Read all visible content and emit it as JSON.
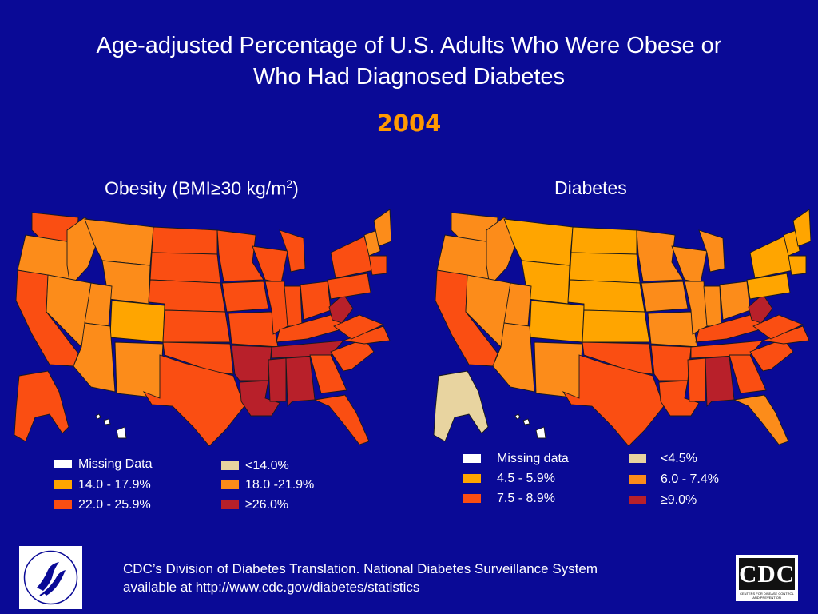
{
  "title_line1": "Age-adjusted Percentage of U.S. Adults Who Were Obese or",
  "title_line2": "Who Had Diagnosed Diabetes",
  "year": "2004",
  "colors": {
    "background": "#0a0a96",
    "missing": "#ffffff",
    "lowest": "#e8d4a0",
    "c1": "#ffa500",
    "c2": "#fc8c1a",
    "c3": "#fa4e12",
    "c4": "#b8202a"
  },
  "obesity": {
    "title_prefix": "Obesity (BMI≥30 kg/m",
    "title_sup": "2",
    "title_suffix": ")",
    "legend": [
      {
        "label": "Missing Data",
        "color": "#ffffff"
      },
      {
        "label": "14.0 - 17.9%",
        "color": "#ffa500"
      },
      {
        "label": "22.0 - 25.9%",
        "color": "#fa4e12"
      },
      {
        "label": "<14.0%",
        "color": "#e8d4a0"
      },
      {
        "label": "18.0 -21.9%",
        "color": "#fc8c1a"
      },
      {
        "label": "≥26.0%",
        "color": "#b8202a"
      }
    ],
    "regions": {
      "west": "#fc8c1a",
      "washington": "#fa4e12",
      "california": "#fa4e12",
      "mountain_n": "#fc8c1a",
      "colorado": "#ffa500",
      "southwest": "#fc8c1a",
      "plains": "#fa4e12",
      "texas_ok": "#fa4e12",
      "deep_south": "#b8202a",
      "midwest": "#fa4e12",
      "southeast": "#fa4e12",
      "northeast": "#fa4e12",
      "new_england": "#fc8c1a",
      "florida": "#fa4e12",
      "west_virginia": "#b8202a",
      "alaska": "#fa4e12",
      "hawaii": "#ffffff"
    }
  },
  "diabetes": {
    "title": "Diabetes",
    "legend": [
      {
        "label": "Missing data",
        "color": "#ffffff"
      },
      {
        "label": "4.5 - 5.9%",
        "color": "#ffa500"
      },
      {
        "label": "7.5 - 8.9%",
        "color": "#fa4e12"
      },
      {
        "label": "<4.5%",
        "color": "#e8d4a0"
      },
      {
        "label": "6.0 - 7.4%",
        "color": "#fc8c1a"
      },
      {
        "label": "≥9.0%",
        "color": "#b8202a"
      }
    ],
    "regions": {
      "west": "#fc8c1a",
      "washington": "#fc8c1a",
      "california": "#fa4e12",
      "mountain_n": "#ffa500",
      "colorado": "#ffa500",
      "southwest": "#fc8c1a",
      "plains": "#ffa500",
      "texas_ok": "#fa4e12",
      "deep_south": "#fa4e12",
      "midwest": "#fc8c1a",
      "southeast": "#fa4e12",
      "northeast": "#ffa500",
      "new_england": "#ffa500",
      "florida": "#fc8c1a",
      "west_virginia": "#b8202a",
      "alaska": "#e8d4a0",
      "hawaii": "#ffffff",
      "mississippi": "#b8202a"
    }
  },
  "footer_line1": "CDC’s Division of Diabetes Translation.  National Diabetes Surveillance System",
  "footer_line2": "available at http://www.cdc.gov/diabetes/statistics",
  "logos": {
    "hhs": "hhs-seal-icon",
    "cdc_text": "CDC",
    "cdc_sub": "CENTERS FOR DISEASE CONTROL AND PREVENTION"
  }
}
